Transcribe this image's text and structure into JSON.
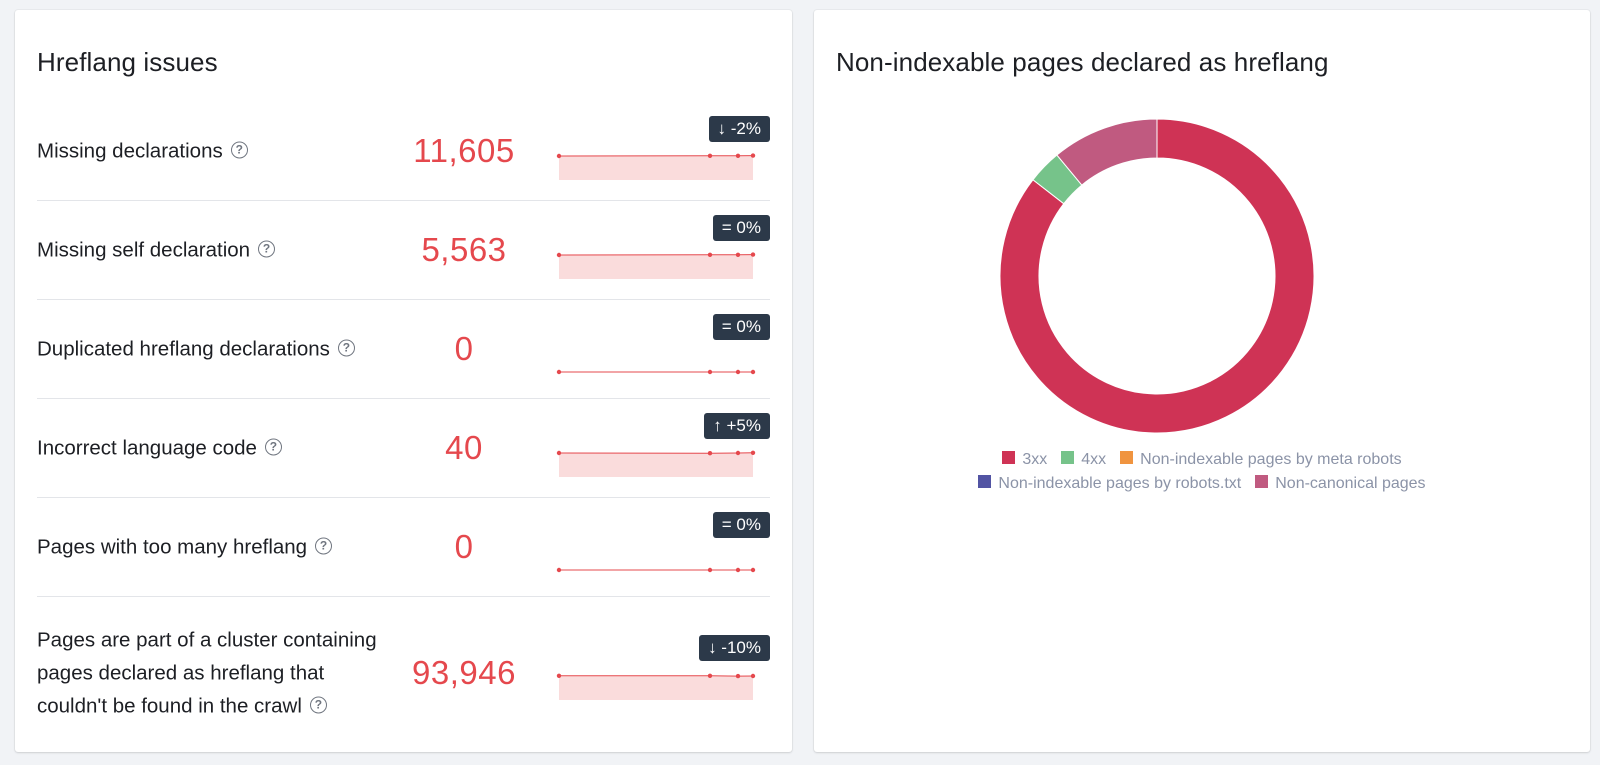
{
  "hreflang_issues": {
    "title": "Hreflang issues",
    "rows": [
      {
        "label": "Missing declarations",
        "value": "11,605",
        "trend": "↓ -2%",
        "spark": [
          0.5,
          0.55,
          0.55,
          0.6
        ]
      },
      {
        "label": "Missing self declaration",
        "value": "5,563",
        "trend": "= 0%",
        "spark": [
          0.5,
          0.55,
          0.55,
          0.6
        ]
      },
      {
        "label": "Duplicated hreflang declarations",
        "value": "0",
        "trend": "= 0%",
        "spark": [
          0.0,
          0.0,
          0.0,
          0.0
        ]
      },
      {
        "label": "Incorrect language code",
        "value": "40",
        "trend": "↑ +5%",
        "spark": [
          0.5,
          0.45,
          0.5,
          0.55
        ]
      },
      {
        "label": "Pages with too many hreflang",
        "value": "0",
        "trend": "= 0%",
        "spark": [
          0.0,
          0.0,
          0.0,
          0.0
        ]
      },
      {
        "label": "Pages are part of a cluster containing pages declared as hreflang that couldn't be found in the crawl",
        "value": "93,946",
        "trend": "↓ -10%",
        "spark": [
          0.55,
          0.55,
          0.48,
          0.5
        ]
      }
    ]
  },
  "non_indexable": {
    "title": "Non-indexable pages declared as hreflang",
    "legend_line1": [
      {
        "label": "3xx",
        "color": "#cf3355"
      },
      {
        "label": "4xx",
        "color": "#76c38a"
      },
      {
        "label": "Non-indexable pages by meta robots",
        "color": "#f0943f"
      }
    ],
    "legend_line2": [
      {
        "label": "Non-indexable pages by robots.txt",
        "color": "#5254a3"
      },
      {
        "label": "Non-canonical pages",
        "color": "#c05a80"
      }
    ]
  },
  "chart_data": {
    "type": "pie",
    "title": "Non-indexable pages declared as hreflang",
    "categories": [
      "3xx",
      "4xx",
      "Non-indexable pages by meta robots",
      "Non-indexable pages by robots.txt",
      "Non-canonical pages"
    ],
    "values": [
      85.5,
      3.5,
      0,
      0,
      11.0
    ],
    "colors": [
      "#cf3355",
      "#76c38a",
      "#f0943f",
      "#5254a3",
      "#c05a80"
    ],
    "legend": "bottom"
  }
}
